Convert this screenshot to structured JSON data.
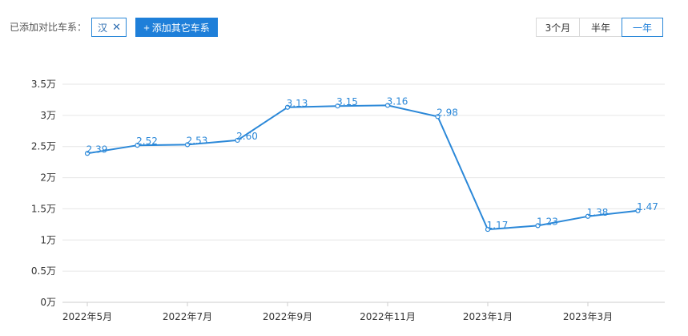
{
  "toolbar": {
    "compare_label": "已添加对比车系：",
    "selected_chip": "汉",
    "add_button_label": "添加其它车系",
    "range_options": [
      "3个月",
      "半年",
      "一年"
    ],
    "active_range": "一年"
  },
  "colors": {
    "accent": "#1e7fd9",
    "line": "#2b88d8",
    "grid": "#e6e6e6"
  },
  "chart_data": {
    "type": "line",
    "title": "",
    "xlabel": "",
    "ylabel": "",
    "categories": [
      "2022年5月",
      "2022年6月",
      "2022年7月",
      "2022年8月",
      "2022年9月",
      "2022年10月",
      "2022年11月",
      "2022年12月",
      "2023年1月",
      "2023年2月",
      "2023年3月",
      "2023年4月"
    ],
    "x_tick_labels": [
      "2022年5月",
      "2022年7月",
      "2022年9月",
      "2022年11月",
      "2023年1月",
      "2023年3月"
    ],
    "values": [
      2.39,
      2.52,
      2.53,
      2.6,
      3.13,
      3.15,
      3.16,
      2.98,
      1.17,
      1.23,
      1.38,
      1.47
    ],
    "data_labels": [
      "2.39",
      "2.52",
      "2.53",
      "2.60",
      "3.13",
      "3.15",
      "3.16",
      "2.98",
      "1.17",
      "1.23",
      "1.38",
      "1.47"
    ],
    "y_ticks": [
      0,
      0.5,
      1,
      1.5,
      2,
      2.5,
      3,
      3.5
    ],
    "y_tick_labels": [
      "0万",
      "0.5万",
      "1万",
      "1.5万",
      "2万",
      "2.5万",
      "3万",
      "3.5万"
    ],
    "ylim": [
      0,
      3.5
    ],
    "grid": true,
    "legend": "none"
  }
}
